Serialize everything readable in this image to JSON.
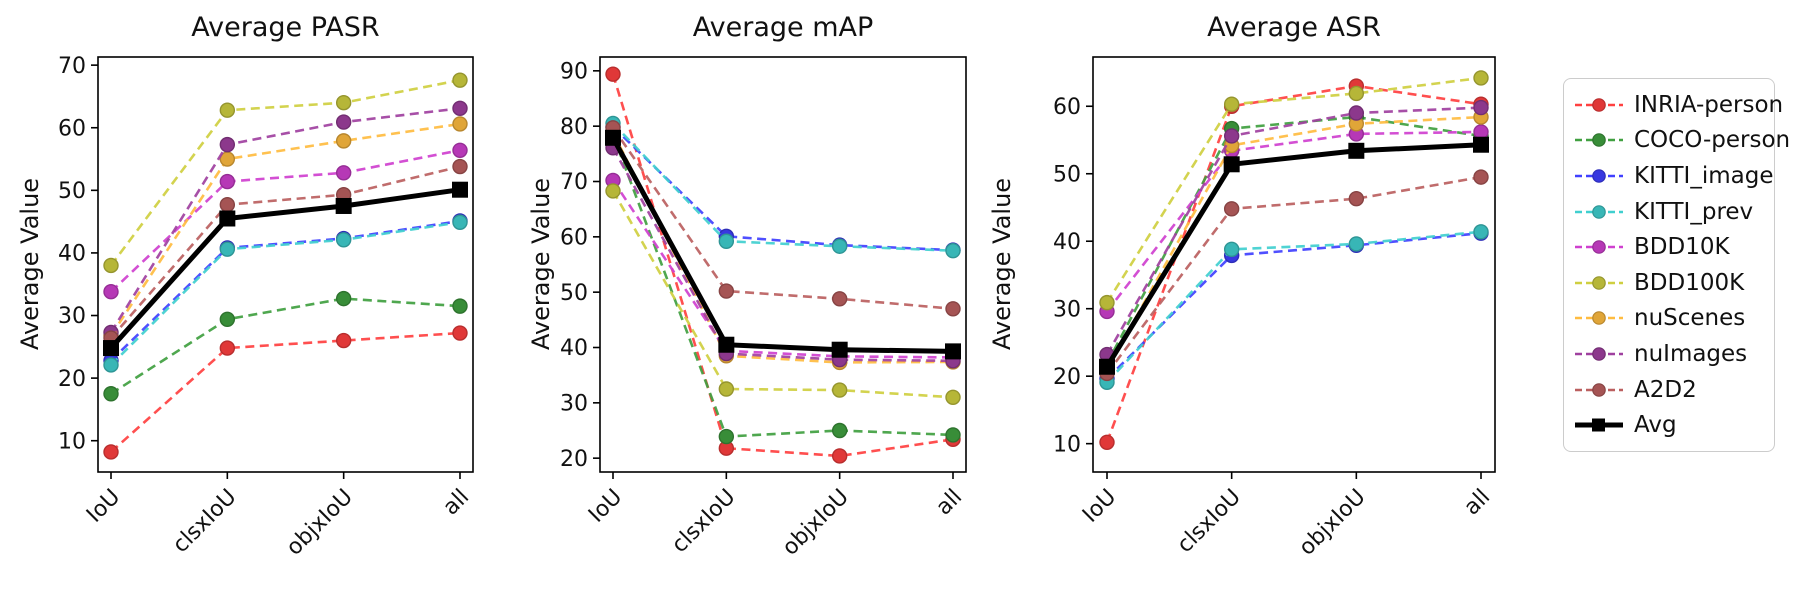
{
  "figure": {
    "background": "#ffffff",
    "ylabel": "Average Value",
    "categories": [
      "IoU",
      "clsxIoU",
      "objxIoU",
      "all"
    ]
  },
  "series_styles": {
    "INRIA-person": {
      "color": "#ff4040",
      "dash": true,
      "marker": "circle"
    },
    "COCO-person": {
      "color": "#40a040",
      "dash": true,
      "marker": "circle"
    },
    "KITTI_image": {
      "color": "#4040ff",
      "dash": true,
      "marker": "circle"
    },
    "KITTI_prev": {
      "color": "#40cfcf",
      "dash": true,
      "marker": "circle"
    },
    "BDD10K": {
      "color": "#cf40cf",
      "dash": true,
      "marker": "circle"
    },
    "BDD100K": {
      "color": "#cfcf40",
      "dash": true,
      "marker": "circle"
    },
    "nuScenes": {
      "color": "#ffbc40",
      "dash": true,
      "marker": "circle"
    },
    "nuImages": {
      "color": "#9f409f",
      "dash": true,
      "marker": "circle"
    },
    "A2D2": {
      "color": "#bb5f5f",
      "dash": true,
      "marker": "circle"
    },
    "Avg": {
      "color": "#000000",
      "dash": false,
      "marker": "square",
      "thick": true
    }
  },
  "legend": {
    "items": [
      "INRIA-person",
      "COCO-person",
      "KITTI_image",
      "KITTI_prev",
      "BDD10K",
      "BDD100K",
      "nuScenes",
      "nuImages",
      "A2D2",
      "Avg"
    ],
    "position": "right"
  },
  "chart_data": [
    {
      "type": "line",
      "title": "Average PASR",
      "xlabel": "",
      "ylabel": "Average Value",
      "categories": [
        "IoU",
        "clsxIoU",
        "objxIoU",
        "all"
      ],
      "ylim": [
        5.0,
        71.3
      ],
      "yticks": [
        10,
        20,
        30,
        40,
        50,
        60,
        70
      ],
      "grid": false,
      "series": [
        {
          "name": "INRIA-person",
          "values": [
            8.2,
            24.8,
            26.0,
            27.2
          ]
        },
        {
          "name": "COCO-person",
          "values": [
            17.5,
            29.4,
            32.7,
            31.5
          ]
        },
        {
          "name": "KITTI_image",
          "values": [
            22.8,
            40.8,
            42.3,
            45.1
          ]
        },
        {
          "name": "KITTI_prev",
          "values": [
            22.1,
            40.6,
            42.1,
            44.9
          ]
        },
        {
          "name": "BDD10K",
          "values": [
            33.8,
            51.4,
            52.8,
            56.4
          ]
        },
        {
          "name": "BDD100K",
          "values": [
            38.0,
            62.8,
            64.0,
            67.6
          ]
        },
        {
          "name": "nuScenes",
          "values": [
            26.8,
            55.0,
            57.9,
            60.6
          ]
        },
        {
          "name": "nuImages",
          "values": [
            27.3,
            57.3,
            60.9,
            63.1
          ]
        },
        {
          "name": "A2D2",
          "values": [
            26.4,
            47.7,
            49.3,
            53.8
          ]
        },
        {
          "name": "Avg",
          "values": [
            24.8,
            45.5,
            47.5,
            50.1
          ]
        }
      ]
    },
    {
      "type": "line",
      "title": "Average mAP",
      "xlabel": "",
      "ylabel": "Average Value",
      "categories": [
        "IoU",
        "clsxIoU",
        "objxIoU",
        "all"
      ],
      "ylim": [
        17.5,
        92.5
      ],
      "yticks": [
        20,
        30,
        40,
        50,
        60,
        70,
        80,
        90
      ],
      "grid": false,
      "series": [
        {
          "name": "INRIA-person",
          "values": [
            89.4,
            21.8,
            20.4,
            23.4
          ]
        },
        {
          "name": "COCO-person",
          "values": [
            78.4,
            23.9,
            25.0,
            24.2
          ]
        },
        {
          "name": "KITTI_image",
          "values": [
            79.9,
            60.1,
            58.5,
            57.6
          ]
        },
        {
          "name": "KITTI_prev",
          "values": [
            80.5,
            59.2,
            58.3,
            57.5
          ]
        },
        {
          "name": "BDD10K",
          "values": [
            70.2,
            39.4,
            38.4,
            38.2
          ]
        },
        {
          "name": "BDD100K",
          "values": [
            68.3,
            32.5,
            32.3,
            31.0
          ]
        },
        {
          "name": "nuScenes",
          "values": [
            78.8,
            38.5,
            37.3,
            37.4
          ]
        },
        {
          "name": "nuImages",
          "values": [
            76.1,
            38.9,
            37.8,
            37.6
          ]
        },
        {
          "name": "A2D2",
          "values": [
            79.7,
            50.2,
            48.8,
            47.0
          ]
        },
        {
          "name": "Avg",
          "values": [
            77.9,
            40.5,
            39.6,
            39.3
          ]
        }
      ]
    },
    {
      "type": "line",
      "title": "Average ASR",
      "xlabel": "",
      "ylabel": "Average Value",
      "categories": [
        "IoU",
        "clsxIoU",
        "objxIoU",
        "all"
      ],
      "ylim": [
        5.8,
        67.3
      ],
      "yticks": [
        10,
        20,
        30,
        40,
        50,
        60
      ],
      "grid": false,
      "series": [
        {
          "name": "INRIA-person",
          "values": [
            10.2,
            60.0,
            63.0,
            60.3
          ]
        },
        {
          "name": "COCO-person",
          "values": [
            21.9,
            56.7,
            58.4,
            55.6
          ]
        },
        {
          "name": "KITTI_image",
          "values": [
            19.6,
            37.9,
            39.4,
            41.2
          ]
        },
        {
          "name": "KITTI_prev",
          "values": [
            19.1,
            38.8,
            39.6,
            41.4
          ]
        },
        {
          "name": "BDD10K",
          "values": [
            29.6,
            53.4,
            55.9,
            56.2
          ]
        },
        {
          "name": "BDD100K",
          "values": [
            30.9,
            60.3,
            61.9,
            64.2
          ]
        },
        {
          "name": "nuScenes",
          "values": [
            21.0,
            54.2,
            57.4,
            58.4
          ]
        },
        {
          "name": "nuImages",
          "values": [
            23.2,
            55.6,
            59.0,
            59.8
          ]
        },
        {
          "name": "A2D2",
          "values": [
            20.4,
            44.8,
            46.3,
            49.5
          ]
        },
        {
          "name": "Avg",
          "values": [
            21.4,
            51.4,
            53.4,
            54.3
          ]
        }
      ]
    }
  ]
}
